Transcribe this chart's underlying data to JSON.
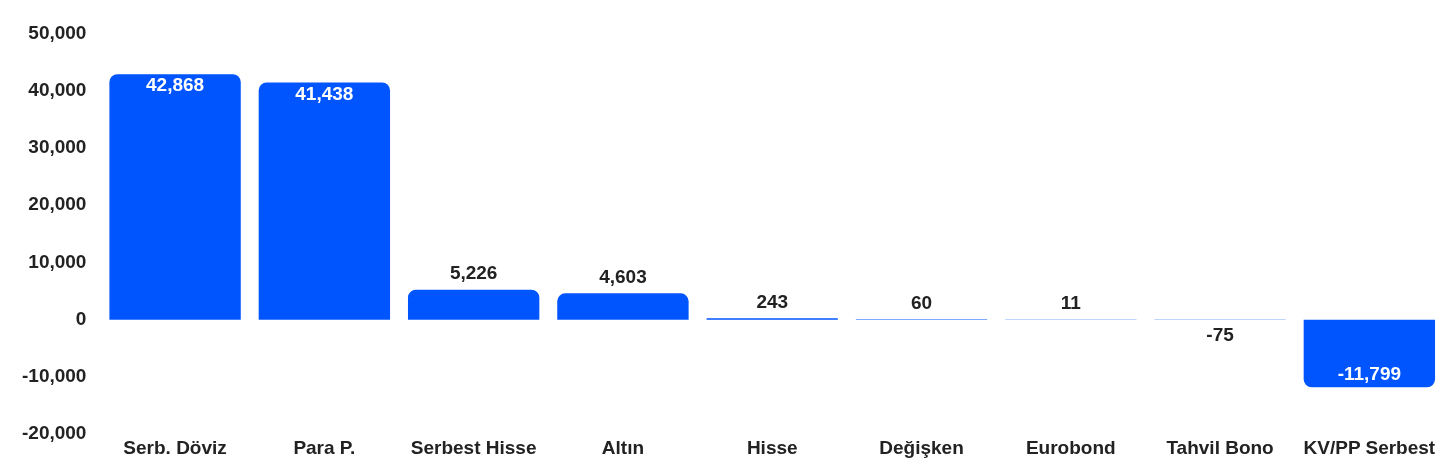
{
  "chart_data": {
    "type": "bar",
    "categories": [
      "Serb. Döviz",
      "Para P.",
      "Serbest Hisse",
      "Altın",
      "Hisse",
      "Değişken",
      "Eurobond",
      "Tahvil Bono",
      "KV/PP Serbest"
    ],
    "values": [
      42868,
      41438,
      5226,
      4603,
      243,
      60,
      11,
      -75,
      -11799
    ],
    "value_labels": [
      "42,868",
      "41,438",
      "5,226",
      "4,603",
      "243",
      "60",
      "11",
      "-75",
      "-11,799"
    ],
    "color": "#0055ff",
    "ylim": [
      -20000,
      50000
    ],
    "yticks": [
      {
        "value": -20000,
        "label": "-20,000"
      },
      {
        "value": -10000,
        "label": "-10,000"
      },
      0,
      {
        "value": 10000,
        "label": "10,000"
      },
      {
        "value": 20000,
        "label": "20,000"
      },
      {
        "value": 30000,
        "label": "30,000"
      },
      {
        "value": 40000,
        "label": "40,000"
      },
      {
        "value": 50000,
        "label": "50,000"
      }
    ]
  }
}
